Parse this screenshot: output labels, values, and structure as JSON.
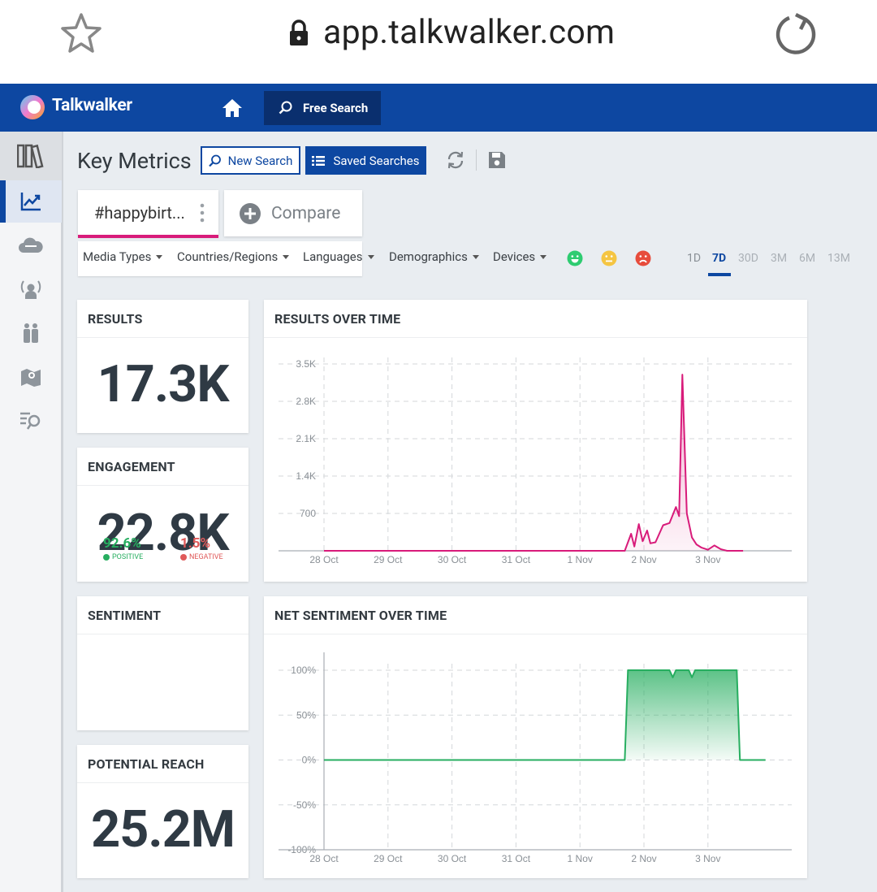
{
  "browser": {
    "url": "app.talkwalker.com",
    "icons": [
      "star-icon",
      "lock-icon",
      "reload-icon"
    ]
  },
  "appbar": {
    "brand": "Talkwalker",
    "free_search_label": "Free Search",
    "color": "#0d47a1"
  },
  "sidebar": {
    "items": [
      {
        "icon": "library-icon"
      },
      {
        "icon": "trend-chart-icon",
        "active": true
      },
      {
        "icon": "cloud-icon"
      },
      {
        "icon": "influencer-icon"
      },
      {
        "icon": "people-icon"
      },
      {
        "icon": "map-icon"
      },
      {
        "icon": "search-list-icon"
      }
    ]
  },
  "page": {
    "title": "Key Metrics",
    "new_search_label": "New Search",
    "saved_searches_label": "Saved Searches"
  },
  "query": {
    "tab_label": "#happybirt...",
    "compare_label": "Compare"
  },
  "filters": {
    "items": [
      "Media Types",
      "Countries/Regions",
      "Languages",
      "Demographics",
      "Devices"
    ],
    "sentiments": [
      "positive-smiley-icon",
      "neutral-smiley-icon",
      "negative-smiley-icon"
    ],
    "periods": [
      "1D",
      "7D",
      "30D",
      "3M",
      "6M",
      "13M"
    ],
    "active_period": "7D"
  },
  "metrics": {
    "results": {
      "title": "RESULTS",
      "value": "17.3K"
    },
    "engagement": {
      "title": "ENGAGEMENT",
      "value": "22.8K"
    },
    "sentiment": {
      "title": "SENTIMENT",
      "positive": "92.6%",
      "positive_label": "POSITIVE",
      "negative": "1.5%",
      "negative_label": "NEGATIVE"
    },
    "reach": {
      "title": "POTENTIAL REACH",
      "value": "25.2M"
    }
  },
  "chart_data": [
    {
      "type": "area",
      "title": "RESULTS OVER TIME",
      "x": [
        "28 Oct",
        "29 Oct",
        "30 Oct",
        "31 Oct",
        "1 Nov",
        "2 Nov",
        "3 Nov"
      ],
      "y_ticks": [
        "700",
        "1.4K",
        "2.1K",
        "2.8K",
        "3.5K"
      ],
      "ylim": [
        0,
        3500
      ],
      "grid": true,
      "color": "#d81b7a",
      "series": [
        {
          "points": [
            [
              0,
              0
            ],
            [
              0.5,
              0
            ],
            [
              1,
              0
            ],
            [
              1.5,
              0
            ],
            [
              2,
              0
            ],
            [
              2.5,
              0
            ],
            [
              3,
              0
            ],
            [
              3.5,
              0
            ],
            [
              4,
              0
            ],
            [
              4.5,
              0
            ],
            [
              4.7,
              0
            ],
            [
              4.8,
              320
            ],
            [
              4.85,
              80
            ],
            [
              4.92,
              500
            ],
            [
              4.98,
              180
            ],
            [
              5.05,
              380
            ],
            [
              5.1,
              140
            ],
            [
              5.18,
              160
            ],
            [
              5.3,
              480
            ],
            [
              5.4,
              520
            ],
            [
              5.5,
              820
            ],
            [
              5.55,
              650
            ],
            [
              5.6,
              3300
            ],
            [
              5.67,
              700
            ],
            [
              5.75,
              250
            ],
            [
              5.82,
              120
            ],
            [
              5.9,
              60
            ],
            [
              6.0,
              20
            ],
            [
              6.1,
              100
            ],
            [
              6.2,
              30
            ],
            [
              6.3,
              0
            ],
            [
              6.55,
              0
            ]
          ]
        }
      ]
    },
    {
      "type": "area",
      "title": "NET SENTIMENT OVER TIME",
      "x": [
        "28 Oct",
        "29 Oct",
        "30 Oct",
        "31 Oct",
        "1 Nov",
        "2 Nov",
        "3 Nov"
      ],
      "y_ticks": [
        "100%",
        "50%",
        "0%",
        "-50%",
        "-100%"
      ],
      "ylim": [
        -100,
        100
      ],
      "grid": true,
      "color": "#27ae60",
      "series": [
        {
          "points": [
            [
              0,
              0
            ],
            [
              1,
              0
            ],
            [
              2,
              0
            ],
            [
              3,
              0
            ],
            [
              4,
              0
            ],
            [
              4.7,
              0
            ],
            [
              4.75,
              100
            ],
            [
              5,
              100
            ],
            [
              5.4,
              100
            ],
            [
              5.45,
              92
            ],
            [
              5.5,
              100
            ],
            [
              5.7,
              100
            ],
            [
              5.75,
              92
            ],
            [
              5.8,
              100
            ],
            [
              6.45,
              100
            ],
            [
              6.5,
              0
            ],
            [
              6.9,
              0
            ]
          ]
        }
      ]
    }
  ]
}
